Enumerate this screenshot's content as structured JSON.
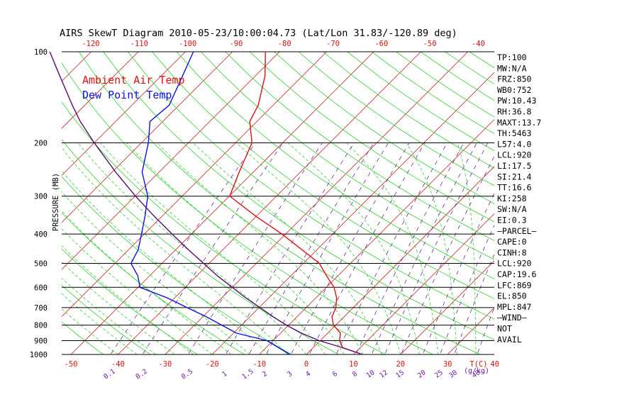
{
  "chart_data": {
    "type": "line",
    "title": "AIRS SkewT Diagram 2010-05-23/10:00:04.73 (Lat/Lon 31.83/-120.89 deg)",
    "ylabel": "PRESSURE (MB)",
    "x_bottom_unit": "T(C)",
    "mixing_ratio_unit": "(g/kg)",
    "pressure_ticks": [
      100,
      200,
      300,
      400,
      500,
      600,
      700,
      800,
      900,
      1000
    ],
    "temp_ticks_bottom": [
      -50,
      -40,
      -30,
      -20,
      -10,
      0,
      10,
      20,
      30,
      40
    ],
    "temp_ticks_top": [
      -120,
      -110,
      -100,
      -90,
      -80,
      -70,
      -60,
      -50,
      -40
    ],
    "mixing_ratio_labels": [
      0.1,
      0.2,
      0.5,
      1,
      1.5,
      2,
      3,
      4,
      6,
      8,
      10,
      12,
      15,
      20,
      25,
      30,
      40
    ],
    "legend": {
      "placement": "top-left"
    },
    "series": [
      {
        "name": "Ambient Air Temp",
        "color": "#e01010",
        "points": [
          {
            "p": 1000,
            "t": 11.9
          },
          {
            "p": 950,
            "t": 6.3
          },
          {
            "p": 900,
            "t": 4.1
          },
          {
            "p": 850,
            "t": 2.7
          },
          {
            "p": 800,
            "t": -0.5
          },
          {
            "p": 750,
            "t": -2.6
          },
          {
            "p": 700,
            "t": -3.7
          },
          {
            "p": 650,
            "t": -5.6
          },
          {
            "p": 600,
            "t": -8.4
          },
          {
            "p": 550,
            "t": -12.4
          },
          {
            "p": 500,
            "t": -16.6
          },
          {
            "p": 450,
            "t": -23.3
          },
          {
            "p": 400,
            "t": -30.8
          },
          {
            "p": 350,
            "t": -40.0
          },
          {
            "p": 300,
            "t": -49.9
          },
          {
            "p": 250,
            "t": -53.0
          },
          {
            "p": 200,
            "t": -56.5
          },
          {
            "p": 170,
            "t": -61.5
          },
          {
            "p": 150,
            "t": -63.2
          },
          {
            "p": 120,
            "t": -68.0
          },
          {
            "p": 100,
            "t": -73.0
          }
        ]
      },
      {
        "name": "Dew Point Temp",
        "color": "#1010e0",
        "points": [
          {
            "p": 1000,
            "t": -3.5
          },
          {
            "p": 950,
            "t": -7.3
          },
          {
            "p": 900,
            "t": -11.3
          },
          {
            "p": 850,
            "t": -19.4
          },
          {
            "p": 800,
            "t": -24.2
          },
          {
            "p": 750,
            "t": -29.3
          },
          {
            "p": 700,
            "t": -35.3
          },
          {
            "p": 650,
            "t": -41.6
          },
          {
            "p": 600,
            "t": -49.6
          },
          {
            "p": 550,
            "t": -52.5
          },
          {
            "p": 500,
            "t": -56.6
          },
          {
            "p": 450,
            "t": -58.0
          },
          {
            "p": 400,
            "t": -60.6
          },
          {
            "p": 350,
            "t": -63.6
          },
          {
            "p": 300,
            "t": -67.3
          },
          {
            "p": 250,
            "t": -73.6
          },
          {
            "p": 200,
            "t": -78.5
          },
          {
            "p": 170,
            "t": -82.7
          },
          {
            "p": 150,
            "t": -82.1
          },
          {
            "p": 120,
            "t": -85.5
          },
          {
            "p": 100,
            "t": -88.3
          }
        ]
      },
      {
        "name": "",
        "color": "#5a0a78",
        "points": [
          {
            "p": 1000,
            "t": 11.9
          },
          {
            "p": 950,
            "t": 6.3
          },
          {
            "p": 900,
            "t": -0.2
          },
          {
            "p": 850,
            "t": -5.6
          },
          {
            "p": 800,
            "t": -10.5
          },
          {
            "p": 750,
            "t": -15.1
          },
          {
            "p": 700,
            "t": -19.8
          },
          {
            "p": 650,
            "t": -24.9
          },
          {
            "p": 600,
            "t": -30.0
          },
          {
            "p": 550,
            "t": -35.6
          },
          {
            "p": 500,
            "t": -41.2
          },
          {
            "p": 450,
            "t": -47.4
          },
          {
            "p": 400,
            "t": -54.1
          },
          {
            "p": 350,
            "t": -61.6
          },
          {
            "p": 300,
            "t": -69.9
          },
          {
            "p": 250,
            "t": -79.2
          },
          {
            "p": 200,
            "t": -90.0
          },
          {
            "p": 170,
            "t": -97.5
          },
          {
            "p": 150,
            "t": -102.7
          },
          {
            "p": 120,
            "t": -111.6
          },
          {
            "p": 100,
            "t": -118.8
          }
        ]
      }
    ],
    "indices": [
      "TP:100",
      "MW:N/A",
      "FRZ:850",
      "WB0:752",
      "PW:10.43",
      "RH:36.8",
      "MAXT:13.7",
      "TH:5463",
      "L57:4.0",
      "LCL:920",
      "LI:17.5",
      "SI:21.4",
      "TT:16.6",
      "KI:258",
      "SW:N/A",
      "EI:0.3",
      "—PARCEL—",
      "CAPE:0",
      "CINH:8",
      "LCL:920",
      "CAP:19.6",
      "LFC:869",
      "EL:850",
      "MPL:847",
      "—WIND—",
      "NOT",
      "AVAIL"
    ]
  }
}
